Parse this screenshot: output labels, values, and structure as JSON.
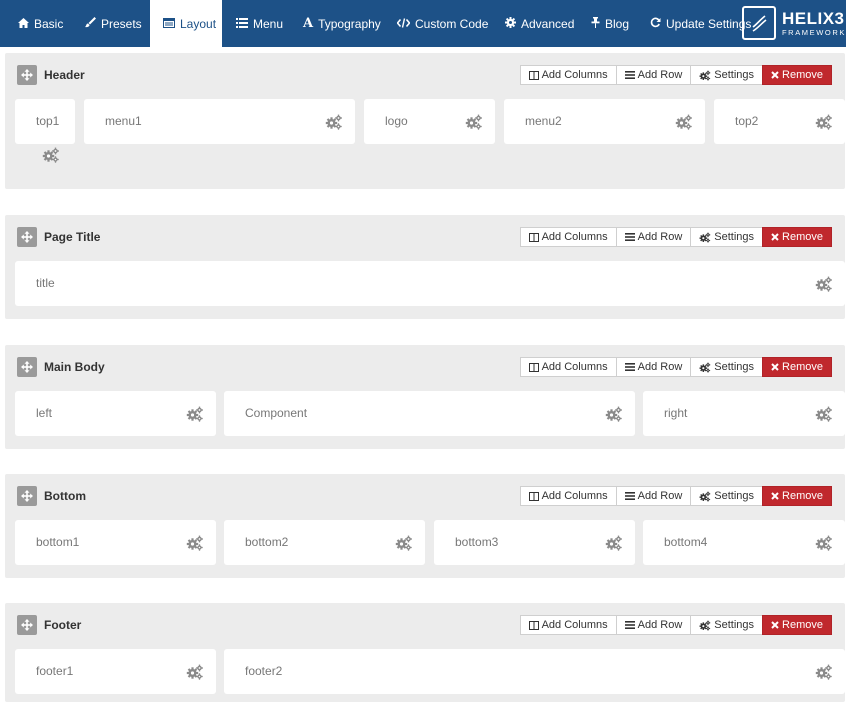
{
  "nav": {
    "tabs": [
      {
        "label": "Basic",
        "icon": "home-icon"
      },
      {
        "label": "Presets",
        "icon": "brush-icon"
      },
      {
        "label": "Layout",
        "icon": "layout-icon",
        "active": true
      },
      {
        "label": "Menu",
        "icon": "list-icon"
      },
      {
        "label": "Typography",
        "icon": "font-icon"
      },
      {
        "label": "Custom Code",
        "icon": "code-icon"
      },
      {
        "label": "Advanced",
        "icon": "cog-icon"
      },
      {
        "label": "Blog",
        "icon": "pin-icon"
      },
      {
        "label": "Update Settings",
        "icon": "refresh-icon"
      }
    ],
    "brand": {
      "name": "HELIX3",
      "subtitle": "FRAMEWORK"
    }
  },
  "actions": {
    "add_columns": "Add Columns",
    "add_row": "Add Row",
    "settings": "Settings",
    "remove": "Remove"
  },
  "colors": {
    "nav_bg": "#1d5187",
    "section_bg": "#ececec",
    "remove_bg": "#c0282d"
  },
  "sections": [
    {
      "title": "Header",
      "columns": [
        "top1",
        "menu1",
        "logo",
        "menu2",
        "top2"
      ]
    },
    {
      "title": "Page Title",
      "columns": [
        "title"
      ]
    },
    {
      "title": "Main Body",
      "columns": [
        "left",
        "Component",
        "right"
      ]
    },
    {
      "title": "Bottom",
      "columns": [
        "bottom1",
        "bottom2",
        "bottom3",
        "bottom4"
      ]
    },
    {
      "title": "Footer",
      "columns": [
        "footer1",
        "footer2"
      ]
    }
  ]
}
